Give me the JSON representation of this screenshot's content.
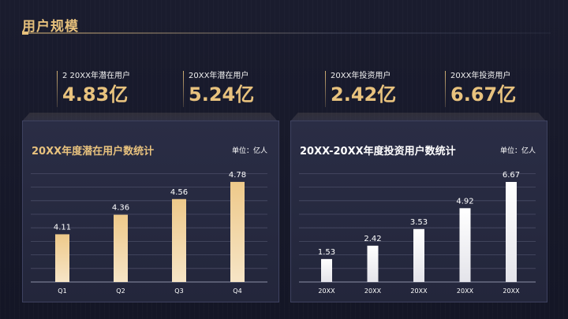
{
  "header": {
    "title": "用户规模"
  },
  "kpis": [
    {
      "label": "2 20XX年潜在用户",
      "value": "4.83亿"
    },
    {
      "label": "20XX年潜在用户",
      "value": "5.24亿"
    },
    {
      "label": "20XX年投资用户",
      "value": "2.42亿"
    },
    {
      "label": "20XX年投资用户",
      "value": "6.67亿"
    }
  ],
  "colors": {
    "accent": "#e8c27e",
    "bar_gold_top": "#f0cf8e",
    "bar_gold_bottom": "#f7e6c8",
    "bar_white": "#ffffff"
  },
  "chart_data": [
    {
      "type": "bar",
      "title": "20XX年度潜在用户数统计",
      "unit": "单位：亿人",
      "categories": [
        "Q1",
        "Q2",
        "Q3",
        "Q4"
      ],
      "values": [
        4.11,
        4.36,
        4.56,
        4.78
      ],
      "ylim": [
        3.5,
        4.9
      ],
      "grid": true,
      "color": "gold"
    },
    {
      "type": "bar",
      "title": "20XX-20XX年度投资用户数统计",
      "unit": "单位：亿人",
      "categories": [
        "20XX",
        "20XX",
        "20XX",
        "20XX",
        "20XX"
      ],
      "values": [
        1.53,
        2.42,
        3.53,
        4.92,
        6.67
      ],
      "ylim": [
        0,
        7.3
      ],
      "grid": true,
      "color": "white"
    }
  ]
}
